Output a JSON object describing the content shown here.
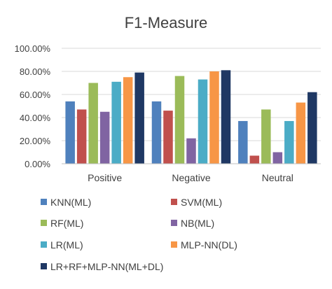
{
  "chart_data": {
    "type": "bar",
    "title": "F1-Measure",
    "categories": [
      "Positive",
      "Negative",
      "Neutral"
    ],
    "ylim": [
      0,
      100
    ],
    "yticks": [
      "0.00%",
      "20.00%",
      "40.00%",
      "60.00%",
      "80.00%",
      "100.00%"
    ],
    "ytick_values": [
      0,
      20,
      40,
      60,
      80,
      100
    ],
    "grid": true,
    "legend_position": "bottom",
    "series": [
      {
        "name": "KNN(ML)",
        "color": "#4f81bd",
        "values": [
          54,
          54,
          37
        ]
      },
      {
        "name": "SVM(ML)",
        "color": "#c0504d",
        "values": [
          47,
          46,
          7
        ]
      },
      {
        "name": "RF(ML)",
        "color": "#9bbb59",
        "values": [
          70,
          76,
          47
        ]
      },
      {
        "name": "NB(ML)",
        "color": "#8064a2",
        "values": [
          45,
          22,
          10
        ]
      },
      {
        "name": "LR(ML)",
        "color": "#4bacc6",
        "values": [
          71,
          73,
          37
        ]
      },
      {
        "name": "MLP-NN(DL)",
        "color": "#f79646",
        "values": [
          75,
          80,
          53
        ]
      },
      {
        "name": "LR+RF+MLP-NN(ML+DL)",
        "color": "#1f3864",
        "values": [
          79,
          81,
          62
        ]
      }
    ]
  }
}
